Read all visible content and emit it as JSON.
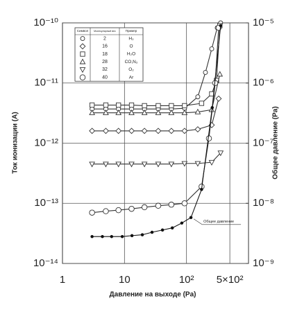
{
  "chart_data": {
    "type": "line",
    "x_label": "Давление на выходе (Pa)",
    "y_label": "Ток ионизации (A)",
    "y2_label": "Общее давление (Pa)",
    "log_x": true,
    "log_y": true,
    "grid": true,
    "xlim": [
      1,
      1000
    ],
    "xticks": [
      1,
      10,
      {
        "value": 100,
        "label": "10²"
      },
      {
        "value": 500,
        "label": "5×10²"
      }
    ],
    "ylim": [
      1e-14,
      1e-10
    ],
    "yticks": [
      {
        "value": 1e-14,
        "label": "10⁻¹⁴"
      },
      {
        "value": 1e-13,
        "label": "10⁻¹³"
      },
      {
        "value": 1e-12,
        "label": "10⁻¹²"
      },
      {
        "value": 1e-11,
        "label": "10⁻¹¹"
      },
      {
        "value": 1e-10,
        "label": "10⁻¹⁰"
      }
    ],
    "y2lim": [
      1e-09,
      1e-05
    ],
    "y2ticks": [
      {
        "value": 1e-09,
        "label": "10⁻⁹"
      },
      {
        "value": 1e-08,
        "label": "10⁻⁸"
      },
      {
        "value": 1e-07,
        "label": "10⁻⁷"
      },
      {
        "value": 1e-06,
        "label": "10⁻⁶"
      },
      {
        "value": 1e-05,
        "label": "10⁻⁵"
      }
    ],
    "legend_headers": [
      "Символ",
      "Молекулярный вес",
      "Пример"
    ],
    "series": [
      {
        "name": "H₂",
        "molecular_weight": 2,
        "marker": "circle",
        "color": "#333333",
        "x": [
          3,
          5,
          8,
          13,
          21,
          35,
          57,
          93,
          152,
          202,
          255,
          313,
          355
        ],
        "values": [
          3.7e-12,
          3.7e-12,
          3.7e-12,
          3.7e-12,
          3.7e-12,
          3.7e-12,
          3.7e-12,
          3.8e-12,
          5.9e-12,
          1.5e-11,
          3.7e-11,
          8.3e-11,
          1e-10
        ]
      },
      {
        "name": "O",
        "molecular_weight": 16,
        "marker": "diamond",
        "color": "#333333",
        "x": [
          3,
          5,
          8,
          13,
          21,
          35,
          57,
          93,
          152,
          255,
          330
        ],
        "values": [
          1.6e-12,
          1.6e-12,
          1.6e-12,
          1.6e-12,
          1.6e-12,
          1.6e-12,
          1.6e-12,
          1.6e-12,
          1.7e-12,
          2e-12,
          5.5e-12
        ]
      },
      {
        "name": "H₂O",
        "molecular_weight": 18,
        "marker": "square",
        "color": "#333333",
        "x": [
          3,
          5,
          8,
          13,
          21,
          35,
          57,
          93,
          175,
          255,
          305,
          345
        ],
        "values": [
          4.3e-12,
          4.3e-12,
          4.3e-12,
          4.3e-12,
          4.2e-12,
          4.2e-12,
          4.2e-12,
          4.2e-12,
          4.6e-12,
          6.6e-12,
          1.1e-11,
          9e-11
        ]
      },
      {
        "name": "CO,N₂",
        "molecular_weight": 28,
        "marker": "triangle",
        "color": "#333333",
        "x": [
          3,
          5,
          8,
          13,
          21,
          35,
          57,
          93,
          152,
          255,
          345
        ],
        "values": [
          3.2e-12,
          3.2e-12,
          3.2e-12,
          3.2e-12,
          3.2e-12,
          3.2e-12,
          3.2e-12,
          3.2e-12,
          3.3e-12,
          3.6e-12,
          1.4e-11
        ]
      },
      {
        "name": "O₂",
        "molecular_weight": 32,
        "marker": "triangle-down",
        "color": "#333333",
        "x": [
          3,
          5,
          8,
          13,
          21,
          35,
          57,
          93,
          152,
          255,
          355
        ],
        "values": [
          4.5e-13,
          4.5e-13,
          4.5e-13,
          4.5e-13,
          4.5e-13,
          4.5e-13,
          4.5e-13,
          4.6e-13,
          4.6e-13,
          4.8e-13,
          6.9e-13
        ]
      },
      {
        "name": "Ar",
        "molecular_weight": 40,
        "marker": "circle-large",
        "color": "#333333",
        "x": [
          3,
          5,
          8,
          13,
          21,
          35,
          57,
          93,
          175,
          230,
          290,
          330
        ],
        "values": [
          7e-14,
          7.4e-14,
          7.7e-14,
          8.1e-14,
          8.6e-14,
          9.1e-14,
          9.5e-14,
          1e-13,
          1.9e-13,
          1.2e-12,
          1e-11,
          8.3e-11
        ]
      },
      {
        "name": "Общее давление",
        "axis": "y2",
        "marker": "dot",
        "color": "#111111",
        "x": [
          3,
          4.4,
          6.2,
          9.2,
          13.2,
          19.4,
          27.8,
          41,
          59,
          84,
          118,
          175,
          260,
          355
        ],
        "values": [
          2.8e-09,
          2.8e-09,
          2.8e-09,
          2.8e-09,
          2.9e-09,
          3e-09,
          3.3e-09,
          3.6e-09,
          3.9e-09,
          4.7e-09,
          5.8e-09,
          1.7e-08,
          3.9e-07,
          9e-06
        ]
      }
    ]
  }
}
